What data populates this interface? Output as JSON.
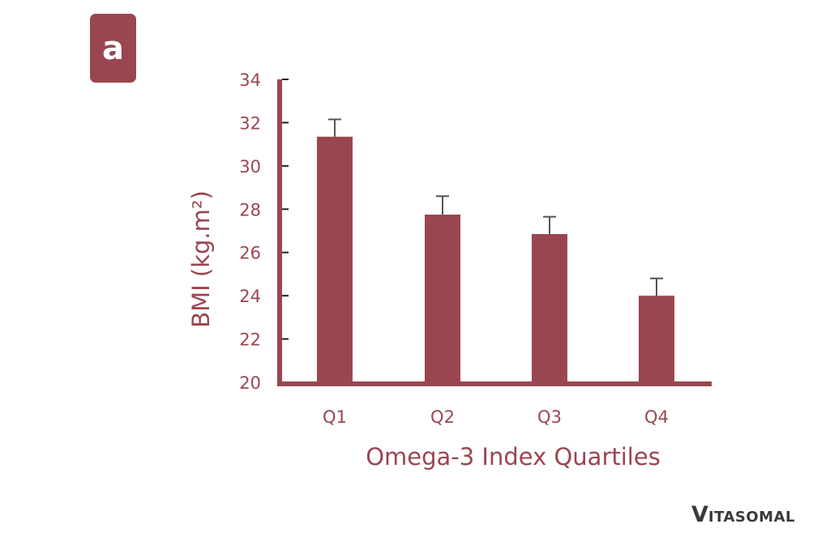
{
  "panel_label": "a",
  "brand": {
    "first_letter": "V",
    "rest": "ITASOMAL"
  },
  "colors": {
    "bar": "#9a4650",
    "axis": "#9a4650",
    "error_bar": "#555555",
    "tick": "#222222",
    "text": "#9a4650"
  },
  "chart_data": {
    "type": "bar",
    "title": "",
    "xlabel": "Omega-3 Index Quartiles",
    "ylabel": "BMI (kg.m²)",
    "categories": [
      "Q1",
      "Q2",
      "Q3",
      "Q4"
    ],
    "values": [
      31.35,
      27.75,
      26.85,
      24.0
    ],
    "error_upper": [
      0.8,
      0.85,
      0.8,
      0.8
    ],
    "ylim": [
      20,
      34
    ],
    "yticks": [
      20,
      22,
      24,
      26,
      28,
      30,
      32,
      34
    ],
    "grid": false,
    "legend": null
  }
}
